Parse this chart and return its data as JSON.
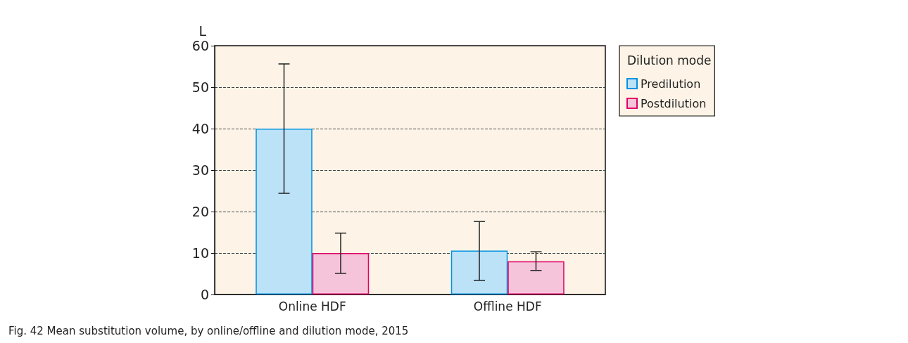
{
  "chart_data": {
    "type": "bar",
    "ylabel": "L",
    "legend_title": "Dilution mode",
    "categories": [
      "Online HDF",
      "Offline HDF"
    ],
    "series": [
      {
        "name": "Predilution",
        "color": "#bce2f7",
        "values": [
          40,
          10.6
        ],
        "errors": [
          [
            24.4,
            55.6
          ],
          [
            3.4,
            17.6
          ]
        ]
      },
      {
        "name": "Postdilution",
        "color": "#f5c4da",
        "values": [
          10,
          8
        ],
        "errors": [
          [
            5.1,
            14.8
          ],
          [
            5.8,
            10.3
          ]
        ]
      }
    ],
    "ylim": [
      0,
      60
    ],
    "yticks": [
      0,
      10,
      20,
      30,
      40,
      50,
      60
    ],
    "grid": "y",
    "legend": "right",
    "annotations": [
      "Fig. 42 Mean substitution volume, by online/offline and dilution mode, 2015"
    ]
  }
}
